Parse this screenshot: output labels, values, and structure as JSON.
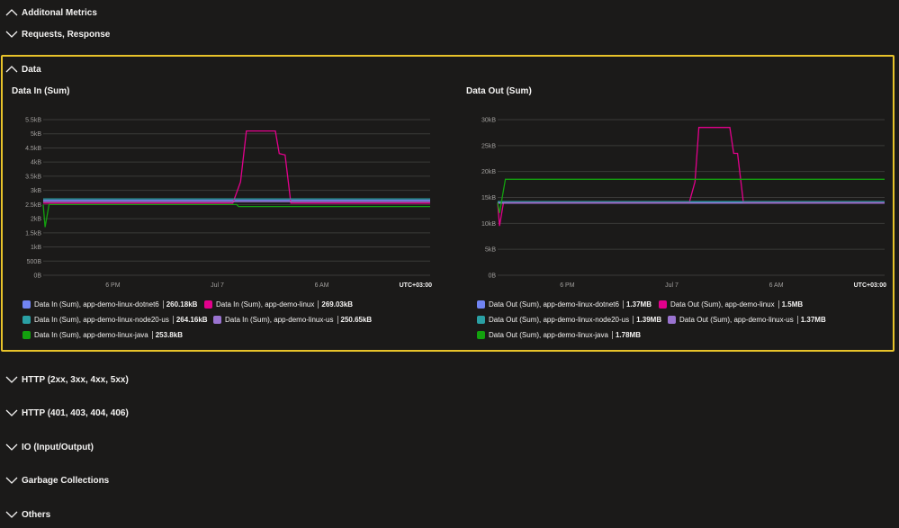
{
  "sections": [
    {
      "title": "Additonal Metrics",
      "expanded": true
    },
    {
      "title": "Requests, Response",
      "expanded": false
    },
    {
      "title": "HTTP (2xx, 3xx, 4xx, 5xx)",
      "expanded": false
    },
    {
      "title": "HTTP (401, 403, 404, 406)",
      "expanded": false
    },
    {
      "title": "IO (Input/Output)",
      "expanded": false
    },
    {
      "title": "Garbage Collections",
      "expanded": false
    },
    {
      "title": "Others",
      "expanded": false
    }
  ],
  "data_panel": {
    "title": "Data",
    "expanded": true
  },
  "colors": {
    "dotnet6": "#7184f2",
    "linux": "#e3008c",
    "node20": "#2aa0a4",
    "us": "#9a73d0",
    "java": "#13a10e",
    "border": "#e8c32a",
    "grid": "#3b3a39"
  },
  "chart_data": [
    {
      "type": "line",
      "title": "Data In (Sum)",
      "y_ticks": [
        "0B",
        "500B",
        "1kB",
        "1.5kB",
        "2kB",
        "2.5kB",
        "3kB",
        "3.5kB",
        "4kB",
        "4.5kB",
        "5kB",
        "5.5kB"
      ],
      "y_tick_values": [
        0,
        500,
        1000,
        1500,
        2000,
        2500,
        3000,
        3500,
        4000,
        4500,
        5000,
        5500
      ],
      "ylim": [
        0,
        5500
      ],
      "x_ticks": [
        "6 PM",
        "Jul 7",
        "6 AM"
      ],
      "x_tick_values": [
        0.18,
        0.45,
        0.72
      ],
      "timezone": "UTC+03:00",
      "grid": true,
      "series": [
        {
          "name": "Data In (Sum), app-demo-linux-dotnet6",
          "value": "260.18kB",
          "color": "#7184f2",
          "points": [
            [
              0,
              2650
            ],
            [
              1,
              2650
            ]
          ]
        },
        {
          "name": "Data In (Sum), app-demo-linux",
          "value": "269.03kB",
          "color": "#e3008c",
          "points": [
            [
              0,
              2550
            ],
            [
              0.49,
              2550
            ],
            [
              0.51,
              3300
            ],
            [
              0.525,
              5100
            ],
            [
              0.6,
              5100
            ],
            [
              0.61,
              4300
            ],
            [
              0.625,
              4250
            ],
            [
              0.64,
              2550
            ],
            [
              1,
              2550
            ]
          ]
        },
        {
          "name": "Data In (Sum), app-demo-linux-node20-us",
          "value": "264.16kB",
          "color": "#2aa0a4",
          "points": [
            [
              0,
              2700
            ],
            [
              1,
              2700
            ]
          ]
        },
        {
          "name": "Data In (Sum), app-demo-linux-us",
          "value": "250.65kB",
          "color": "#9a73d0",
          "points": [
            [
              0,
              2600
            ],
            [
              1,
              2600
            ]
          ]
        },
        {
          "name": "Data In (Sum), app-demo-linux-java",
          "value": "253.8kB",
          "color": "#13a10e",
          "points": [
            [
              0,
              2500
            ],
            [
              0.005,
              1700
            ],
            [
              0.015,
              2500
            ],
            [
              0.5,
              2500
            ],
            [
              0.505,
              2430
            ],
            [
              0.64,
              2430
            ],
            [
              1,
              2430
            ]
          ]
        }
      ]
    },
    {
      "type": "line",
      "title": "Data Out (Sum)",
      "y_ticks": [
        "0B",
        "5kB",
        "10kB",
        "15kB",
        "20kB",
        "25kB",
        "30kB"
      ],
      "y_tick_values": [
        0,
        5000,
        10000,
        15000,
        20000,
        25000,
        30000
      ],
      "ylim": [
        0,
        30000
      ],
      "x_ticks": [
        "6 PM",
        "Jul 7",
        "6 AM"
      ],
      "x_tick_values": [
        0.18,
        0.45,
        0.72
      ],
      "timezone": "UTC+03:00",
      "grid": true,
      "series": [
        {
          "name": "Data Out (Sum), app-demo-linux-dotnet6",
          "value": "1.37MB",
          "color": "#7184f2",
          "points": [
            [
              0,
              14000
            ],
            [
              1,
              14000
            ]
          ]
        },
        {
          "name": "Data Out (Sum), app-demo-linux",
          "value": "1.5MB",
          "color": "#e3008c",
          "points": [
            [
              0,
              14000
            ],
            [
              0.005,
              9500
            ],
            [
              0.015,
              14000
            ],
            [
              0.495,
              14000
            ],
            [
              0.51,
              18000
            ],
            [
              0.52,
              28500
            ],
            [
              0.6,
              28500
            ],
            [
              0.61,
              23500
            ],
            [
              0.62,
              23500
            ],
            [
              0.635,
              14000
            ],
            [
              1,
              14000
            ]
          ]
        },
        {
          "name": "Data Out (Sum), app-demo-linux-node20-us",
          "value": "1.39MB",
          "color": "#2aa0a4",
          "points": [
            [
              0,
              14200
            ],
            [
              1,
              14200
            ]
          ]
        },
        {
          "name": "Data Out (Sum), app-demo-linux-us",
          "value": "1.37MB",
          "color": "#9a73d0",
          "points": [
            [
              0,
              13900
            ],
            [
              1,
              13900
            ]
          ]
        },
        {
          "name": "Data Out (Sum), app-demo-linux-java",
          "value": "1.78MB",
          "color": "#13a10e",
          "points": [
            [
              0,
              14000
            ],
            [
              0.005,
              12000
            ],
            [
              0.02,
              18500
            ],
            [
              1,
              18500
            ]
          ]
        }
      ]
    }
  ]
}
